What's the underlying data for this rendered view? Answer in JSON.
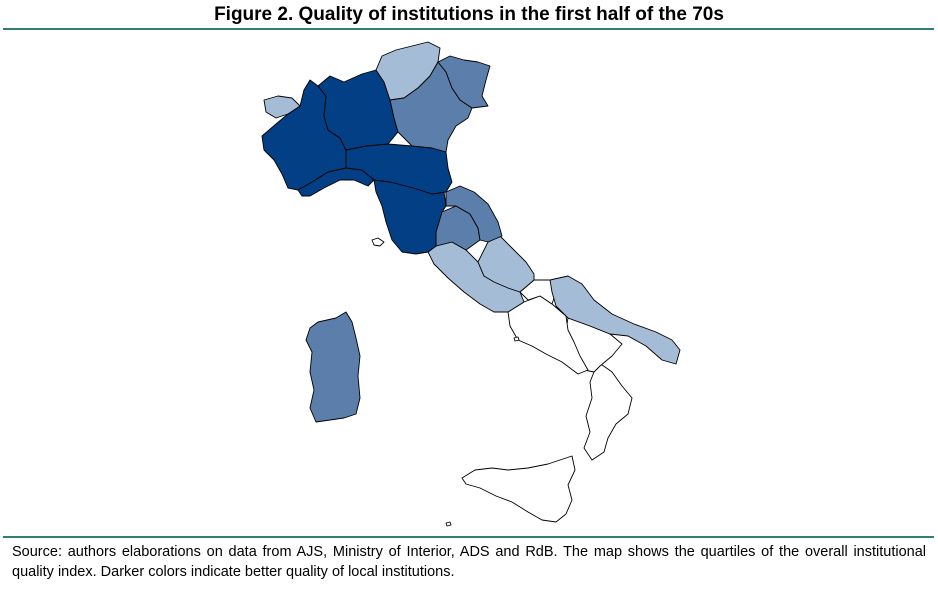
{
  "title": "Figure 2. Quality of institutions in the first half of the 70s",
  "caption": "Source: authors elaborations on data from AJS, Ministry of Interior, ADS and RdB. The map shows the quartiles of the overall institutional quality index. Darker colors indicate better quality of local institutions.",
  "colors": {
    "quartile_4": "#023f84",
    "quartile_3": "#5b7faa",
    "quartile_2": "#a5bcd6",
    "quartile_1": "#ffffff",
    "rule": "#2f7f79",
    "border": "#000000"
  },
  "regions": [
    {
      "name": "Valle d'Aosta",
      "quartile": 2
    },
    {
      "name": "Piemonte",
      "quartile": 4
    },
    {
      "name": "Lombardia",
      "quartile": 4
    },
    {
      "name": "Trentino-Alto Adige",
      "quartile": 2
    },
    {
      "name": "Veneto",
      "quartile": 3
    },
    {
      "name": "Friuli-Venezia Giulia",
      "quartile": 3
    },
    {
      "name": "Liguria",
      "quartile": 4
    },
    {
      "name": "Emilia-Romagna",
      "quartile": 4
    },
    {
      "name": "Toscana",
      "quartile": 4
    },
    {
      "name": "Marche",
      "quartile": 3
    },
    {
      "name": "Umbria",
      "quartile": 3
    },
    {
      "name": "Lazio",
      "quartile": 2
    },
    {
      "name": "Abruzzo",
      "quartile": 2
    },
    {
      "name": "Molise",
      "quartile": 1
    },
    {
      "name": "Campania",
      "quartile": 1
    },
    {
      "name": "Puglia",
      "quartile": 2
    },
    {
      "name": "Basilicata",
      "quartile": 1
    },
    {
      "name": "Calabria",
      "quartile": 1
    },
    {
      "name": "Sicilia",
      "quartile": 1
    },
    {
      "name": "Sardegna",
      "quartile": 3
    }
  ]
}
